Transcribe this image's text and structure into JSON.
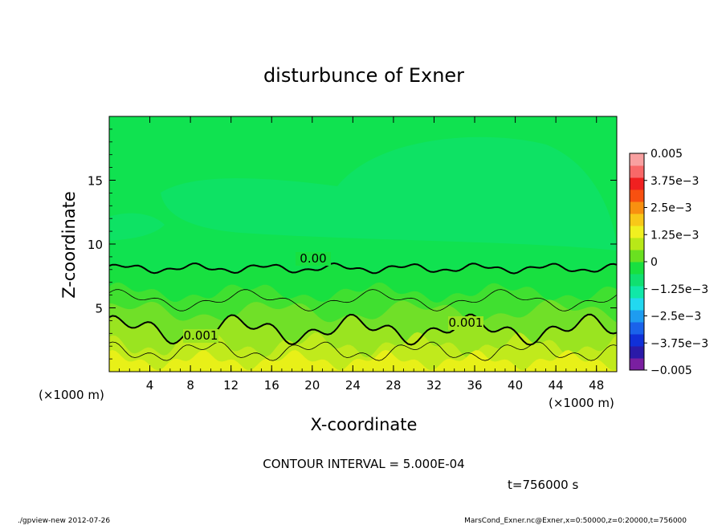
{
  "chart_data": {
    "type": "heatmap",
    "title": "disturbunce of Exner",
    "xlabel": "X-coordinate",
    "ylabel": "Z-coordinate",
    "x_unit_left": "(×1000 m)",
    "x_unit_right": "(×1000 m)",
    "xlim": [
      0,
      50
    ],
    "ylim": [
      0,
      20
    ],
    "xticks": [
      4,
      8,
      12,
      16,
      20,
      24,
      28,
      32,
      36,
      40,
      44,
      48
    ],
    "yticks": [
      5,
      10,
      15
    ],
    "colorbar": {
      "ticks": [
        {
          "value": 0.005,
          "label": "0.005"
        },
        {
          "value": 0.00375,
          "label": "3.75e−3"
        },
        {
          "value": 0.0025,
          "label": "2.5e−3"
        },
        {
          "value": 0.00125,
          "label": "1.25e−3"
        },
        {
          "value": 0,
          "label": "0"
        },
        {
          "value": -0.00125,
          "label": "−1.25e−3"
        },
        {
          "value": -0.0025,
          "label": "−2.5e−3"
        },
        {
          "value": -0.00375,
          "label": "−3.75e−3"
        },
        {
          "value": -0.005,
          "label": "−0.005"
        }
      ],
      "colors_bottom_to_top": [
        "#7a1fa0",
        "#2a1aa8",
        "#1030d8",
        "#1a62ea",
        "#1e9cf0",
        "#22d8f0",
        "#10e8a8",
        "#10e070",
        "#18e040",
        "#6ae020",
        "#b8e818",
        "#f0f020",
        "#f8c818",
        "#f89010",
        "#f85010",
        "#f02020",
        "#f86868",
        "#f8a0a0"
      ]
    },
    "contour_interval_text": "CONTOUR INTERVAL = 5.000E-04",
    "contour_labels": [
      "0.00",
      "0.001",
      "0.001"
    ],
    "time_text": "t=756000 s",
    "footer_left": "./gpview-new  2012-07-26",
    "footer_right": "MarsCond_Exner.nc@Exner,x=0:50000,z=0:20000,t=756000",
    "field_colors": {
      "upper": "#10e250",
      "upper_patch": "#0ee264",
      "band_0": "#18e040",
      "band_1": "#40e030",
      "band_2": "#70e028",
      "band_3": "#9ae420",
      "band_4": "#c0ea1c",
      "band_5": "#e8f018"
    }
  }
}
